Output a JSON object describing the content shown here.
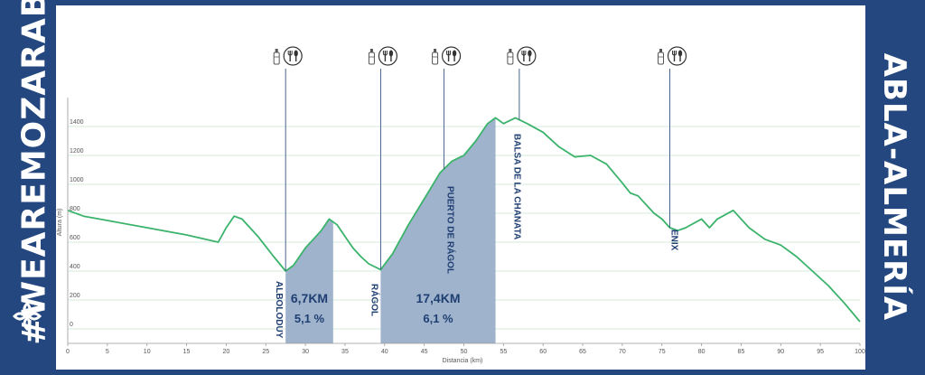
{
  "branding": {
    "hashtag": "#WEAREMOZARABES",
    "route": "ABLA-ALMERÍA",
    "logo_icon": "mozarabe-cross-logo-icon"
  },
  "colors": {
    "frame": "#23477e",
    "profile_line": "#3bb36b",
    "climb_fill": "#9fb3cc",
    "grid": "#c9e6cf",
    "label": "#1f3f73"
  },
  "chart_data": {
    "type": "area",
    "xlabel": "Distancia (km)",
    "ylabel": "Altura (m)",
    "xlim": [
      0,
      100
    ],
    "ylim": [
      -100,
      1600
    ],
    "xticks": [
      0,
      5,
      10,
      15,
      20,
      25,
      30,
      35,
      40,
      45,
      50,
      55,
      60,
      65,
      70,
      75,
      80,
      85,
      90,
      95,
      100
    ],
    "yticks": [
      0,
      200,
      400,
      600,
      800,
      1000,
      1200,
      1400
    ],
    "grid": true,
    "series": [
      {
        "x": [
          0,
          2,
          5,
          10,
          15,
          19,
          20,
          21,
          22,
          23,
          24,
          25,
          26,
          27.5,
          28.5,
          30,
          31,
          32,
          33,
          34,
          35,
          36,
          37,
          38,
          39.5,
          41,
          43,
          45,
          47,
          48.5,
          50,
          51.5,
          53,
          54,
          55,
          56.5,
          58,
          60,
          62,
          64,
          66,
          68,
          70,
          71,
          72,
          74,
          75,
          76,
          77,
          78,
          80,
          81,
          82,
          84,
          86,
          88,
          90,
          92,
          94,
          96,
          98,
          100
        ],
        "y": [
          820,
          780,
          750,
          700,
          650,
          600,
          700,
          780,
          760,
          700,
          640,
          570,
          500,
          400,
          440,
          560,
          620,
          680,
          760,
          720,
          640,
          560,
          500,
          450,
          410,
          520,
          720,
          900,
          1080,
          1160,
          1200,
          1300,
          1420,
          1460,
          1420,
          1460,
          1420,
          1360,
          1260,
          1190,
          1200,
          1140,
          1010,
          940,
          920,
          800,
          760,
          700,
          680,
          700,
          760,
          700,
          760,
          820,
          700,
          620,
          580,
          500,
          400,
          300,
          180,
          50
        ]
      }
    ],
    "climbs": [
      {
        "x_start": 27.5,
        "x_end": 33.5,
        "distance": "6,7KM",
        "gradient": "5,1 %"
      },
      {
        "x_start": 39.5,
        "x_end": 54,
        "distance": "17,4KM",
        "gradient": "6,1 %"
      }
    ],
    "places": [
      {
        "name": "ALBOLODUY",
        "x": 27.5
      },
      {
        "name": "RÁGOL",
        "x": 39.5
      },
      {
        "name": "PUERTO DE RÁGOL",
        "x": 47.5
      },
      {
        "name": "BALSA DE LA CHANATA",
        "x": 55.5
      },
      {
        "name": "ENIX",
        "x": 76
      }
    ],
    "aid_stations": [
      {
        "x": 27.5,
        "icons": [
          "water-bottle-icon",
          "food-cutlery-icon"
        ]
      },
      {
        "x": 39.5,
        "icons": [
          "water-bottle-icon",
          "food-cutlery-icon"
        ]
      },
      {
        "x": 47.5,
        "icons": [
          "water-bottle-icon",
          "food-cutlery-icon"
        ]
      },
      {
        "x": 57,
        "icons": [
          "water-bottle-icon",
          "food-cutlery-icon"
        ]
      },
      {
        "x": 76,
        "icons": [
          "water-bottle-icon",
          "food-cutlery-icon"
        ]
      }
    ]
  }
}
